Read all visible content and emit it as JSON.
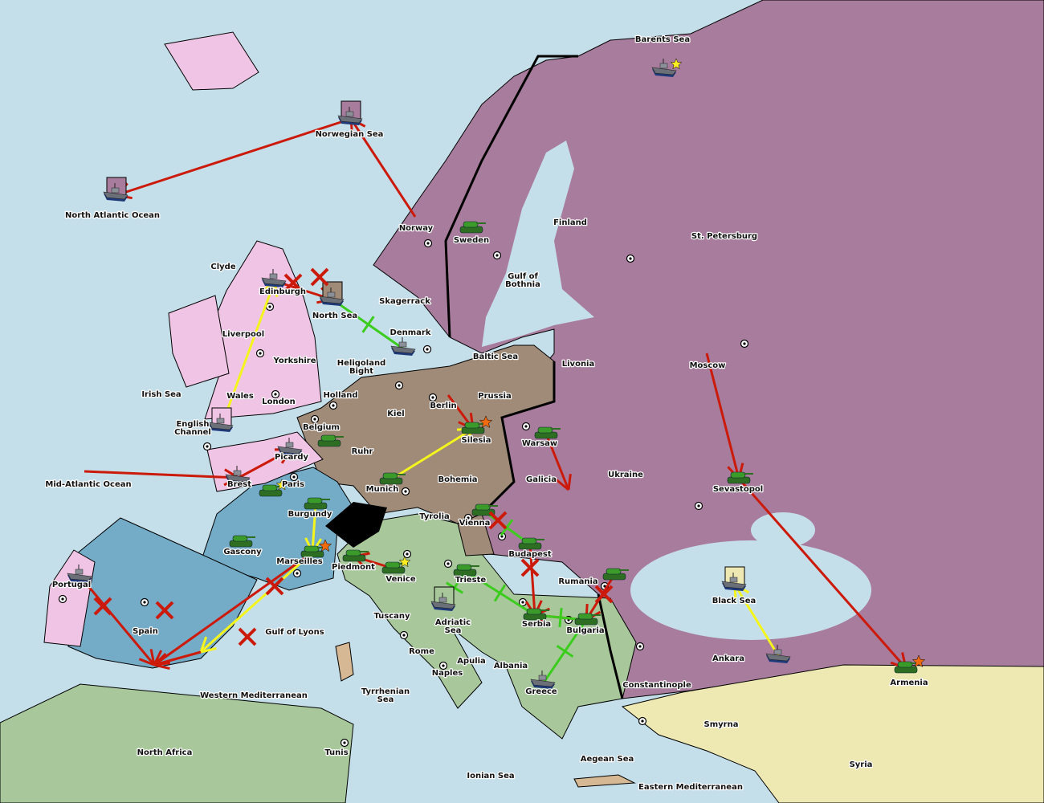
{
  "colors": {
    "sea": "#c5dfea",
    "russia": "#a87c9c",
    "germany": "#a08a78",
    "france": "#74abc6",
    "england": "#f0c4e4",
    "italy_austria_neutral": "#a8c89c",
    "turkey": "#eee9b2",
    "switzerland": "#000000",
    "order_failed": "#cc1a0a",
    "order_move": "#f5f51e",
    "order_support": "#3ccc1e",
    "army": "#3a9a2a",
    "fleet": "#6a6f78"
  },
  "labels": [
    {
      "lines": [
        "Barents Sea"
      ]
    },
    {
      "lines": [
        "Norwegian Sea"
      ]
    },
    {
      "lines": [
        "North Atlantic Ocean"
      ]
    },
    {
      "lines": [
        "Norway"
      ]
    },
    {
      "lines": [
        "Sweden"
      ]
    },
    {
      "lines": [
        "Finland"
      ]
    },
    {
      "lines": [
        "St. Petersburg"
      ]
    },
    {
      "lines": [
        "Gulf of",
        "Bothnia"
      ]
    },
    {
      "lines": [
        "Clyde"
      ]
    },
    {
      "lines": [
        "Edinburgh"
      ]
    },
    {
      "lines": [
        "North Sea"
      ]
    },
    {
      "lines": [
        "Skagerrack"
      ]
    },
    {
      "lines": [
        "Denmark"
      ]
    },
    {
      "lines": [
        "Liverpool"
      ]
    },
    {
      "lines": [
        "Yorkshire"
      ]
    },
    {
      "lines": [
        "Baltic Sea"
      ]
    },
    {
      "lines": [
        "Livonia"
      ]
    },
    {
      "lines": [
        "Moscow"
      ]
    },
    {
      "lines": [
        "Heligoland",
        "Bight"
      ]
    },
    {
      "lines": [
        "Irish Sea"
      ]
    },
    {
      "lines": [
        "Wales"
      ]
    },
    {
      "lines": [
        "London"
      ]
    },
    {
      "lines": [
        "Holland"
      ]
    },
    {
      "lines": [
        "Kiel"
      ]
    },
    {
      "lines": [
        "Berlin"
      ]
    },
    {
      "lines": [
        "Prussia"
      ]
    },
    {
      "lines": [
        "English",
        "Channel"
      ]
    },
    {
      "lines": [
        "Belgium"
      ]
    },
    {
      "lines": [
        "Silesia"
      ]
    },
    {
      "lines": [
        "Warsaw"
      ]
    },
    {
      "lines": [
        "Ruhr"
      ]
    },
    {
      "lines": [
        "Picardy"
      ]
    },
    {
      "lines": [
        "Ukraine"
      ]
    },
    {
      "lines": [
        "Mid-Atlantic Ocean"
      ]
    },
    {
      "lines": [
        "Brest"
      ]
    },
    {
      "lines": [
        "Paris"
      ]
    },
    {
      "lines": [
        "Munich"
      ]
    },
    {
      "lines": [
        "Bohemia"
      ]
    },
    {
      "lines": [
        "Galicia"
      ]
    },
    {
      "lines": [
        "Sevastopol"
      ]
    },
    {
      "lines": [
        "Burgundy"
      ]
    },
    {
      "lines": [
        "Tyrolia"
      ]
    },
    {
      "lines": [
        "Vienna"
      ]
    },
    {
      "lines": [
        "Gascony"
      ]
    },
    {
      "lines": [
        "Budapest"
      ]
    },
    {
      "lines": [
        "Marseilles"
      ]
    },
    {
      "lines": [
        "Piedmont"
      ]
    },
    {
      "lines": [
        "Venice"
      ]
    },
    {
      "lines": [
        "Trieste"
      ]
    },
    {
      "lines": [
        "Rumania"
      ]
    },
    {
      "lines": [
        "Portugal"
      ]
    },
    {
      "lines": [
        "Black Sea"
      ]
    },
    {
      "lines": [
        "Adriatic",
        "Sea"
      ]
    },
    {
      "lines": [
        "Tuscany"
      ]
    },
    {
      "lines": [
        "Serbia"
      ]
    },
    {
      "lines": [
        "Bulgaria"
      ]
    },
    {
      "lines": [
        "Spain"
      ]
    },
    {
      "lines": [
        "Gulf of Lyons"
      ]
    },
    {
      "lines": [
        "Rome"
      ]
    },
    {
      "lines": [
        "Apulia"
      ]
    },
    {
      "lines": [
        "Ankara"
      ]
    },
    {
      "lines": [
        "Albania"
      ]
    },
    {
      "lines": [
        "Naples"
      ]
    },
    {
      "lines": [
        "Armenia"
      ]
    },
    {
      "lines": [
        "Constantinople"
      ]
    },
    {
      "lines": [
        "Western Mediterranean"
      ]
    },
    {
      "lines": [
        "Tyrrhenian",
        "Sea"
      ]
    },
    {
      "lines": [
        "Greece"
      ]
    },
    {
      "lines": [
        "Smyrna"
      ]
    },
    {
      "lines": [
        "North Africa"
      ]
    },
    {
      "lines": [
        "Tunis"
      ]
    },
    {
      "lines": [
        "Aegean Sea"
      ]
    },
    {
      "lines": [
        "Syria"
      ]
    },
    {
      "lines": [
        "Ionian Sea"
      ]
    },
    {
      "lines": [
        "Eastern Mediterranean"
      ]
    }
  ],
  "units": [
    {
      "type": "fleet",
      "province": "Barents Sea"
    },
    {
      "type": "fleet",
      "province": "Norwegian Sea",
      "retreat_box": "russia"
    },
    {
      "type": "fleet",
      "province": "North Atlantic Ocean",
      "retreat_box": "russia"
    },
    {
      "type": "army",
      "province": "Sweden"
    },
    {
      "type": "fleet",
      "province": "Edinburgh"
    },
    {
      "type": "fleet",
      "province": "North Sea",
      "retreat_box": "germany"
    },
    {
      "type": "fleet",
      "province": "Denmark"
    },
    {
      "type": "fleet",
      "province": "English Channel",
      "retreat_box": "england"
    },
    {
      "type": "fleet",
      "province": "Picardy"
    },
    {
      "type": "fleet",
      "province": "Brest"
    },
    {
      "type": "army",
      "province": "Paris"
    },
    {
      "type": "army",
      "province": "Belgium"
    },
    {
      "type": "army",
      "province": "Burgundy"
    },
    {
      "type": "army",
      "province": "Munich"
    },
    {
      "type": "army",
      "province": "Silesia"
    },
    {
      "type": "army",
      "province": "Warsaw"
    },
    {
      "type": "army",
      "province": "Gascony"
    },
    {
      "type": "army",
      "province": "Marseilles"
    },
    {
      "type": "army",
      "province": "Piedmont"
    },
    {
      "type": "army",
      "province": "Venice"
    },
    {
      "type": "army",
      "province": "Trieste"
    },
    {
      "type": "fleet",
      "province": "Adriatic Sea",
      "retreat_box": "italy_austria_neutral"
    },
    {
      "type": "army",
      "province": "Vienna"
    },
    {
      "type": "army",
      "province": "Budapest"
    },
    {
      "type": "army",
      "province": "Rumania"
    },
    {
      "type": "army",
      "province": "Serbia"
    },
    {
      "type": "army",
      "province": "Bulgaria"
    },
    {
      "type": "fleet",
      "province": "Greece"
    },
    {
      "type": "fleet",
      "province": "Portugal"
    },
    {
      "type": "army",
      "province": "Sevastopol"
    },
    {
      "type": "fleet",
      "province": "Black Sea",
      "retreat_box": "turkey"
    },
    {
      "type": "fleet",
      "province": "Ankara"
    },
    {
      "type": "army",
      "province": "Armenia"
    }
  ],
  "orders": [
    {
      "kind": "failed",
      "from": "Norway",
      "to": "Norwegian Sea"
    },
    {
      "kind": "failed",
      "from": "Norwegian Sea",
      "to": "North Atlantic Ocean"
    },
    {
      "kind": "move",
      "from": "English Channel",
      "to": "Edinburgh"
    },
    {
      "kind": "failed",
      "from": "Edinburgh",
      "to": "North Sea"
    },
    {
      "kind": "support",
      "from": "North Sea",
      "to": "Denmark"
    },
    {
      "kind": "failed",
      "from": "Mid-Atlantic Ocean",
      "to": "Brest"
    },
    {
      "kind": "failed",
      "from": "Brest",
      "to": "Picardy"
    },
    {
      "kind": "move",
      "from": "Munich",
      "to": "Silesia"
    },
    {
      "kind": "failed",
      "from": "Berlin",
      "to": "Silesia"
    },
    {
      "kind": "failed",
      "from": "Warsaw",
      "to": "Galicia"
    },
    {
      "kind": "failed",
      "from": "Moscow",
      "to": "Sevastopol"
    },
    {
      "kind": "failed",
      "from": "Sevastopol",
      "to": "Armenia"
    },
    {
      "kind": "move",
      "from": "Ankara",
      "to": "Black Sea"
    },
    {
      "kind": "move",
      "from": "Burgundy",
      "to": "Marseilles"
    },
    {
      "kind": "move",
      "from": "Marseilles",
      "to": "Gulf of Lyons"
    },
    {
      "kind": "failed",
      "from": "Marseilles",
      "to": "Spain"
    },
    {
      "kind": "failed",
      "from": "Portugal",
      "to": "Spain"
    },
    {
      "kind": "failed",
      "from": "Gulf of Lyons",
      "to": "Spain"
    },
    {
      "kind": "failed",
      "from": "Venice",
      "to": "Piedmont"
    },
    {
      "kind": "support",
      "from": "Vienna",
      "to": "Budapest"
    },
    {
      "kind": "support",
      "from": "Trieste",
      "to": "Serbia"
    },
    {
      "kind": "support",
      "from": "Adriatic Sea",
      "to": "Trieste"
    },
    {
      "kind": "failed",
      "from": "Budapest",
      "to": "Serbia"
    },
    {
      "kind": "failed",
      "from": "Rumania",
      "to": "Bulgaria"
    },
    {
      "kind": "failed",
      "from": "Bulgaria",
      "to": "Serbia"
    },
    {
      "kind": "support",
      "from": "Greece",
      "to": "Bulgaria"
    },
    {
      "kind": "support",
      "from": "Serbia",
      "to": "Bulgaria"
    }
  ],
  "markers": {
    "stars": [
      "Barents Sea",
      "Paris",
      "Venice"
    ],
    "explosions": [
      "Silesia",
      "Marseilles",
      "Armenia"
    ],
    "failed_x": [
      "Edinburgh",
      "North Sea",
      "Spain",
      "Portugal",
      "Gulf of Lyons",
      "Marseilles",
      "Vienna",
      "Budapest",
      "Rumania"
    ]
  },
  "icons": {
    "supply_center": "target-dot-icon",
    "army": "tank-icon",
    "fleet": "battleship-icon",
    "star": "star-icon",
    "explosion": "explosion-icon"
  }
}
